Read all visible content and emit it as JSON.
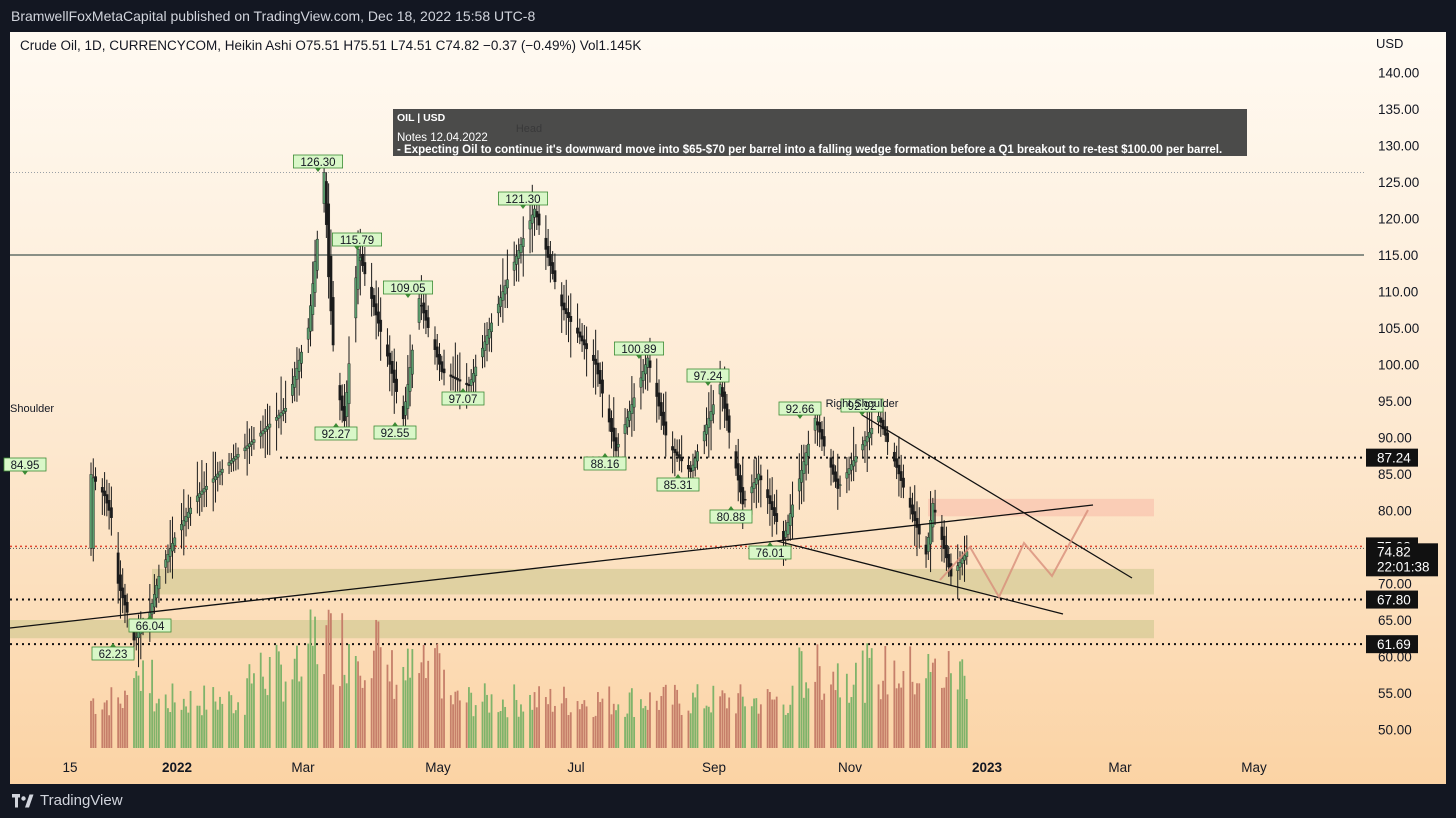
{
  "publisher_line": "BramwellFoxMetaCapital published on TradingView.com, Dec 18, 2022 15:58 UTC-8",
  "brand": "TradingView",
  "chart_data": {
    "type": "candlestick",
    "symbol": "Crude Oil",
    "interval": "1D",
    "exchange": "CURRENCYCOM",
    "chart_style": "Heikin Ashi",
    "ohlc": {
      "open": "O75.51",
      "high": "H75.51",
      "low": "L74.51",
      "close": "C74.82",
      "change": "−0.37 (−0.49%)",
      "volume": "Vol1.145K"
    },
    "currency": "USD",
    "ylim": [
      45,
      143
    ],
    "y_ticks": [
      "140.00",
      "135.00",
      "130.00",
      "125.00",
      "120.00",
      "115.00",
      "110.00",
      "105.00",
      "100.00",
      "95.00",
      "90.00",
      "85.00",
      "80.00",
      "75.00",
      "70.00",
      "65.00",
      "60.00",
      "55.00",
      "50.00"
    ],
    "x_ticks": [
      "15",
      "2022",
      "Mar",
      "May",
      "Jul",
      "Sep",
      "Nov",
      "2023",
      "Mar",
      "May"
    ],
    "price_path": [
      [
        84.95,
        "2021-11-24"
      ],
      [
        82,
        "2021-11-30"
      ],
      [
        79,
        "2021-12-03"
      ],
      [
        70,
        "2021-12-06"
      ],
      [
        66.04,
        "2021-12-10"
      ],
      [
        62.23,
        "2021-12-13"
      ],
      [
        66.04,
        "2021-12-20"
      ],
      [
        71,
        "2021-12-24"
      ],
      [
        77,
        "2022-01-01"
      ],
      [
        82,
        "2022-01-10"
      ],
      [
        86,
        "2022-01-22"
      ],
      [
        90,
        "2022-02-05"
      ],
      [
        94,
        "2022-02-18"
      ],
      [
        105,
        "2022-02-28"
      ],
      [
        126.3,
        "2022-03-07"
      ],
      [
        112,
        "2022-03-09"
      ],
      [
        98,
        "2022-03-12"
      ],
      [
        92.27,
        "2022-03-16"
      ],
      [
        115.79,
        "2022-03-22"
      ],
      [
        100,
        "2022-04-05"
      ],
      [
        92.55,
        "2022-04-11"
      ],
      [
        109.05,
        "2022-04-18"
      ],
      [
        99,
        "2022-04-28"
      ],
      [
        97.07,
        "2022-05-10"
      ],
      [
        110,
        "2022-05-25"
      ],
      [
        121.3,
        "2022-06-08"
      ],
      [
        108,
        "2022-06-20"
      ],
      [
        100,
        "2022-07-05"
      ],
      [
        88.16,
        "2022-07-14"
      ],
      [
        100.89,
        "2022-07-28"
      ],
      [
        89,
        "2022-08-06"
      ],
      [
        85.31,
        "2022-08-16"
      ],
      [
        97.24,
        "2022-08-29"
      ],
      [
        80.88,
        "2022-09-08"
      ],
      [
        85,
        "2022-09-15"
      ],
      [
        76.01,
        "2022-09-26"
      ],
      [
        92.66,
        "2022-10-10"
      ],
      [
        83,
        "2022-10-20"
      ],
      [
        92.92,
        "2022-11-07"
      ],
      [
        85,
        "2022-11-16"
      ],
      [
        74,
        "2022-11-28"
      ],
      [
        81,
        "2022-12-01"
      ],
      [
        71,
        "2022-12-09"
      ],
      [
        74.82,
        "2022-12-17"
      ]
    ],
    "peak_labels": [
      "126.30",
      "115.79",
      "109.05",
      "121.30",
      "100.89",
      "97.24",
      "92.66",
      "92.92",
      "84.95"
    ],
    "trough_labels": [
      "92.27",
      "92.55",
      "97.07",
      "88.16",
      "85.31",
      "80.88",
      "76.01",
      "66.04",
      "62.23"
    ],
    "price_level_tags": [
      "87.24",
      "75.08",
      "74.82",
      "67.80",
      "61.69"
    ],
    "countdown": "22:01:38",
    "horizontal_levels": [
      115.0,
      126.3
    ],
    "dotted_levels": [
      87.24,
      67.8,
      61.69
    ],
    "red_dotted_level": 75.08,
    "zones": [
      {
        "from": 72.0,
        "to": 68.5,
        "color": "#c8c48a"
      },
      {
        "from": 65.0,
        "to": 62.5,
        "color": "#c8c48a"
      },
      {
        "from": 81.6,
        "to": 79.2,
        "color": "#f8b9a8"
      }
    ],
    "annotations": {
      "shoulder": "Shoulder",
      "head": "Head",
      "right_shoulder": "Right Shoulder"
    },
    "note": {
      "title": "OIL | USD",
      "date_line": "Notes 12.04.2022",
      "text": "- Expecting Oil to continue it's downward move into $65-$70 per barrel into a falling wedge formation before a Q1 breakout to re-test $100.00 per barrel."
    },
    "colors": {
      "up": "#5b9c6d",
      "down": "#1b1b1b",
      "vol_up": "#7fb36a",
      "vol_down": "#c67f6a",
      "label_bg": "#d9f7c8",
      "label_border": "#3d8a35"
    }
  }
}
